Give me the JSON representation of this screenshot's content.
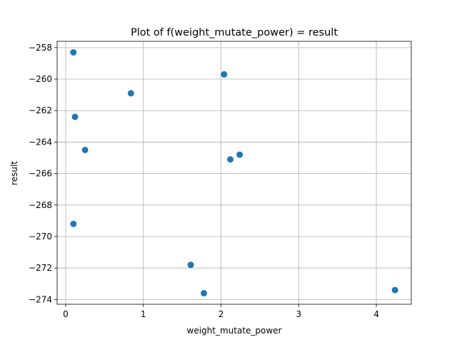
{
  "chart_data": {
    "type": "scatter",
    "title": "Plot of f(weight_mutate_power) = result",
    "xlabel": "weight_mutate_power",
    "ylabel": "result",
    "xlim": [
      -0.11,
      4.45
    ],
    "ylim": [
      -274.3,
      -257.6
    ],
    "xticks": [
      0,
      1,
      2,
      3,
      4
    ],
    "xtick_labels": [
      "0",
      "1",
      "2",
      "3",
      "4"
    ],
    "yticks": [
      -274,
      -272,
      -270,
      -268,
      -266,
      -264,
      -262,
      -260,
      -258
    ],
    "ytick_labels": [
      "−274",
      "−272",
      "−270",
      "−268",
      "−266",
      "−264",
      "−262",
      "−260",
      "−258"
    ],
    "grid": true,
    "marker_color": "#1f77b4",
    "x": [
      0.1,
      0.12,
      0.25,
      0.1,
      0.84,
      1.61,
      1.78,
      2.04,
      2.12,
      2.24,
      4.24
    ],
    "y": [
      -258.3,
      -262.4,
      -264.5,
      -269.2,
      -260.9,
      -271.8,
      -273.6,
      -259.7,
      -265.1,
      -264.8,
      -273.4
    ]
  }
}
